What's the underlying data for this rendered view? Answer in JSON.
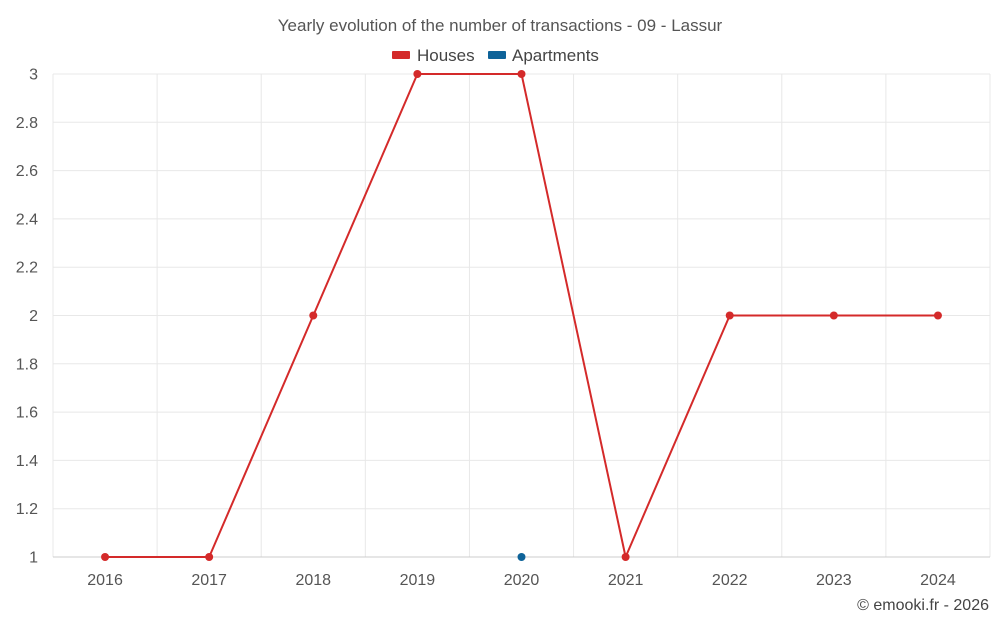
{
  "chart_data": {
    "type": "line",
    "title": "Yearly evolution of the number of transactions - 09 - Lassur",
    "xlabel": "",
    "ylabel": "",
    "categories": [
      "2016",
      "2017",
      "2018",
      "2019",
      "2020",
      "2021",
      "2022",
      "2023",
      "2024"
    ],
    "ylim": [
      1,
      3
    ],
    "yticks": [
      "1",
      "1.2",
      "1.4",
      "1.6",
      "1.8",
      "2",
      "2.2",
      "2.4",
      "2.6",
      "2.8",
      "3"
    ],
    "grid": true,
    "legend_position": "top-center",
    "series": [
      {
        "name": "Houses",
        "color": "#d42a2a",
        "values": [
          1,
          1,
          2,
          3,
          3,
          1,
          2,
          2,
          2
        ]
      },
      {
        "name": "Apartments",
        "color": "#0e6399",
        "values": [
          null,
          null,
          null,
          null,
          1,
          null,
          null,
          null,
          null
        ]
      }
    ],
    "credit": "© emooki.fr - 2026"
  }
}
